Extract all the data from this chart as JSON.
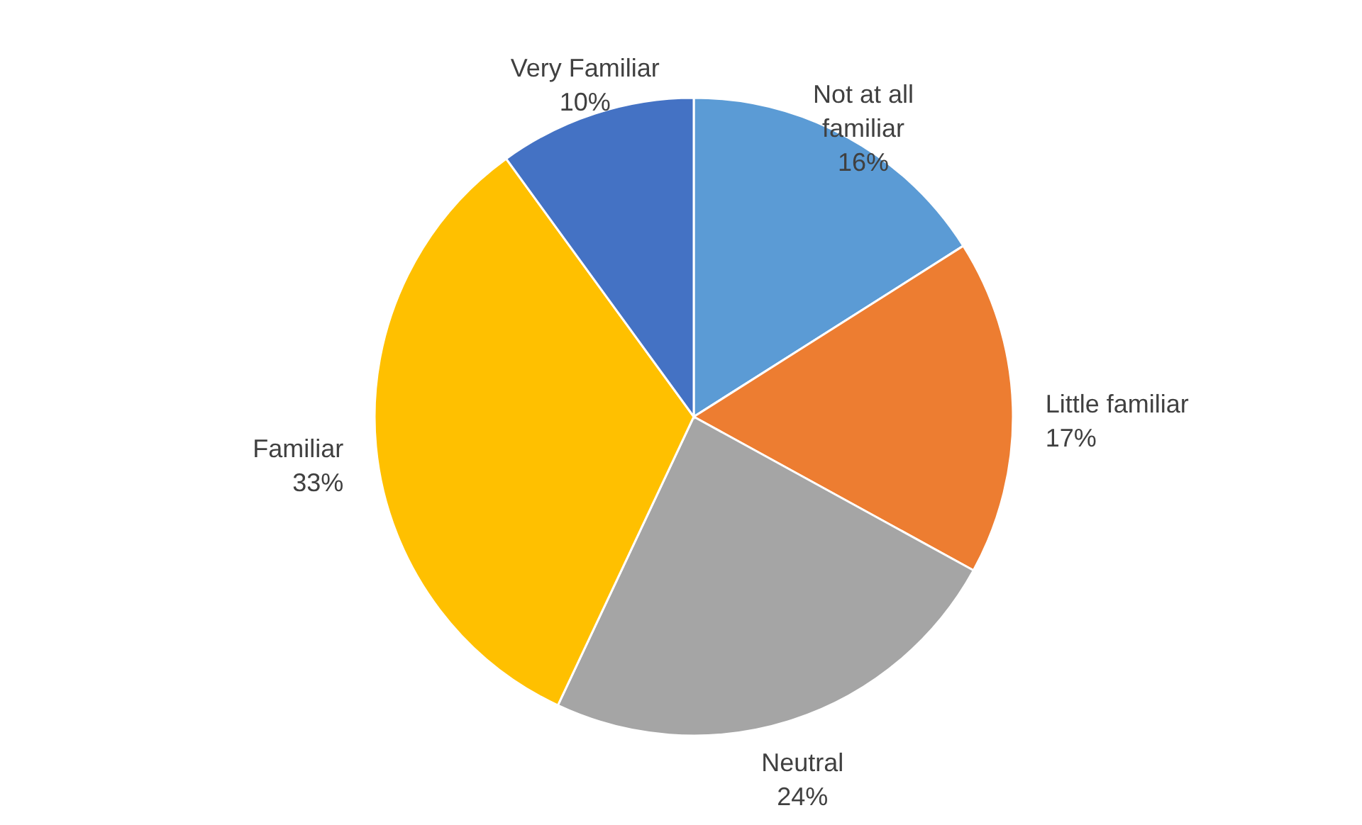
{
  "chart_data": {
    "type": "pie",
    "categories": [
      "Not at all familiar",
      "Little familiar",
      "Neutral",
      "Familiar",
      "Very Familiar"
    ],
    "values": [
      16,
      17,
      24,
      33,
      10
    ],
    "colors": [
      "#5b9bd5",
      "#ed7d31",
      "#a5a5a5",
      "#ffc000",
      "#4472c4"
    ],
    "value_labels": [
      "16%",
      "17%",
      "24%",
      "33%",
      "10%"
    ]
  }
}
